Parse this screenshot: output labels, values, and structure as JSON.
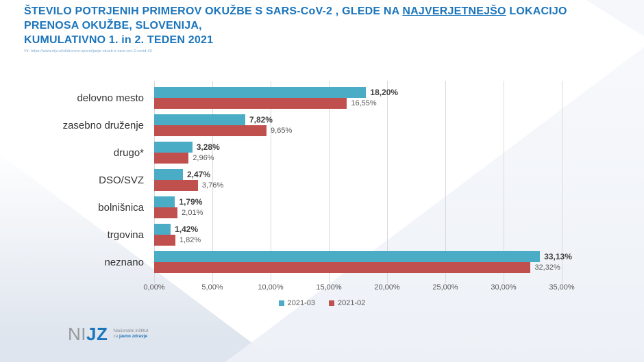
{
  "colors": {
    "title_blue": "#1b75bc",
    "source_blue": "#7aa9d6",
    "series1": "#4BACC6",
    "series2": "#C0504D",
    "gridline": "#d9d9d9"
  },
  "header": {
    "line1_pre": "ŠTEVILO POTRJENIH PRIMEROV OKUŽBE S SARS-CoV-2 , GLEDE NA ",
    "line1_underlined": "NAJVERJETNEJŠO",
    "line1_post": " LOKACIJO",
    "line2": "PRENOSA OKUŽBE, SLOVENIJA,",
    "line3": "KUMULATIVNO 1. in 2. TEDEN 2021",
    "source": "Vir: https://www.nijz.si/sl/dnevno-spremljanje-okuzb-s-sars-cov-2-covid-19"
  },
  "chart_data": {
    "type": "bar",
    "orientation": "horizontal",
    "title": "",
    "categories": [
      "delovno mesto",
      "zasebno druženje",
      "drugo*",
      "DSO/SVZ",
      "bolnišnica",
      "trgovina",
      "neznano"
    ],
    "series": [
      {
        "name": "2021-03",
        "color": "#4BACC6",
        "values": [
          18.2,
          7.82,
          3.28,
          2.47,
          1.79,
          1.42,
          33.13
        ],
        "labels": [
          "18,20%",
          "7,82%",
          "3,28%",
          "2,47%",
          "1,79%",
          "1,42%",
          "33,13%"
        ]
      },
      {
        "name": "2021-02",
        "color": "#C0504D",
        "values": [
          16.55,
          9.65,
          2.96,
          3.76,
          2.01,
          1.82,
          32.32
        ],
        "labels": [
          "16,55%",
          "9,65%",
          "2,96%",
          "3,76%",
          "2,01%",
          "1,82%",
          "32,32%"
        ]
      }
    ],
    "xlim": [
      0,
      35
    ],
    "x_ticks": [
      "0,00%",
      "5,00%",
      "10,00%",
      "15,00%",
      "20,00%",
      "25,00%",
      "30,00%",
      "35,00%"
    ],
    "grid": "vertical",
    "legend_position": "bottom"
  },
  "footer": {
    "logo_gray": "NI",
    "logo_blue": "JZ",
    "tagline_line1": "Nacionalni inštitut",
    "tagline_line2_gray": "za ",
    "tagline_line2_blue": "javno zdravje"
  }
}
